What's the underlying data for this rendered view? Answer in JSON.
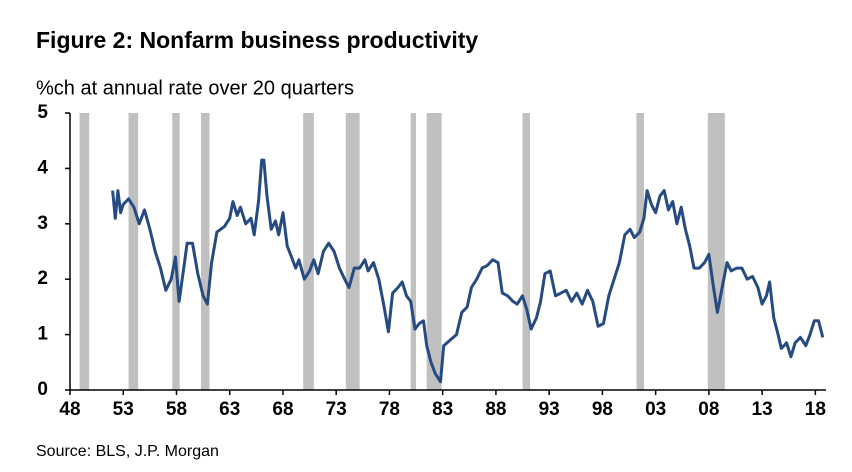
{
  "chart_data": {
    "type": "line",
    "title": "Figure 2: Nonfarm business productivity",
    "subtitle": "%ch at annual rate over 20 quarters",
    "source": "Source: BLS, J.P. Morgan",
    "xlim": [
      1948,
      2019
    ],
    "xticks": [
      {
        "value": 1948,
        "label": "48"
      },
      {
        "value": 1953,
        "label": "53"
      },
      {
        "value": 1958,
        "label": "58"
      },
      {
        "value": 1963,
        "label": "63"
      },
      {
        "value": 1968,
        "label": "68"
      },
      {
        "value": 1973,
        "label": "73"
      },
      {
        "value": 1978,
        "label": "78"
      },
      {
        "value": 1983,
        "label": "83"
      },
      {
        "value": 1988,
        "label": "88"
      },
      {
        "value": 1993,
        "label": "93"
      },
      {
        "value": 1998,
        "label": "98"
      },
      {
        "value": 2003,
        "label": "03"
      },
      {
        "value": 2008,
        "label": "08"
      },
      {
        "value": 2013,
        "label": "13"
      },
      {
        "value": 2018,
        "label": "18"
      }
    ],
    "ylim": [
      0,
      5
    ],
    "yticks": [
      0,
      1,
      2,
      3,
      4,
      5
    ],
    "recession_color": "#c0c0c0",
    "recessions": [
      [
        1948.9,
        1949.8
      ],
      [
        1953.5,
        1954.4
      ],
      [
        1957.6,
        1958.3
      ],
      [
        1960.3,
        1961.1
      ],
      [
        1969.9,
        1970.9
      ],
      [
        1973.9,
        1975.2
      ],
      [
        1980.0,
        1980.5
      ],
      [
        1981.5,
        1982.9
      ],
      [
        1990.5,
        1991.2
      ],
      [
        2001.2,
        2001.9
      ],
      [
        2007.9,
        2009.5
      ]
    ],
    "series": [
      {
        "name": "Nonfarm business productivity",
        "color": "#264b80",
        "x": [
          1952.0,
          1952.25,
          1952.5,
          1952.75,
          1953.0,
          1953.5,
          1954.0,
          1954.5,
          1955.0,
          1955.5,
          1956.0,
          1956.5,
          1957.0,
          1957.5,
          1957.9,
          1958.25,
          1958.75,
          1959.0,
          1959.5,
          1960.0,
          1960.5,
          1960.9,
          1961.3,
          1961.8,
          1962.5,
          1963.0,
          1963.3,
          1963.7,
          1964.0,
          1964.5,
          1965.0,
          1965.3,
          1965.7,
          1966.0,
          1966.2,
          1966.5,
          1966.9,
          1967.3,
          1967.6,
          1968.0,
          1968.4,
          1968.8,
          1969.2,
          1969.5,
          1970.0,
          1970.5,
          1970.9,
          1971.3,
          1971.8,
          1972.3,
          1972.8,
          1973.3,
          1973.8,
          1974.2,
          1974.7,
          1975.2,
          1975.7,
          1976.0,
          1976.5,
          1977.0,
          1977.5,
          1977.9,
          1978.3,
          1978.8,
          1979.2,
          1979.6,
          1980.0,
          1980.4,
          1980.8,
          1981.2,
          1981.5,
          1981.9,
          1982.3,
          1982.8,
          1983.1,
          1983.7,
          1984.3,
          1984.8,
          1985.3,
          1985.7,
          1986.2,
          1986.7,
          1987.2,
          1987.7,
          1988.2,
          1988.6,
          1989.1,
          1989.6,
          1990.0,
          1990.5,
          1990.9,
          1991.3,
          1991.8,
          1992.2,
          1992.6,
          1993.1,
          1993.6,
          1994.1,
          1994.6,
          1995.1,
          1995.6,
          1996.1,
          1996.6,
          1997.1,
          1997.6,
          1998.1,
          1998.6,
          1999.1,
          1999.6,
          2000.1,
          2000.6,
          2001.0,
          2001.5,
          2001.9,
          2002.2,
          2002.6,
          2003.0,
          2003.4,
          2003.8,
          2004.2,
          2004.6,
          2005.0,
          2005.4,
          2005.8,
          2006.2,
          2006.6,
          2007.1,
          2007.6,
          2008.0,
          2008.4,
          2008.8,
          2009.3,
          2009.7,
          2010.1,
          2010.6,
          2011.1,
          2011.6,
          2012.1,
          2012.6,
          2013.0,
          2013.4,
          2013.7,
          2014.1,
          2014.5,
          2014.8,
          2015.3,
          2015.7,
          2016.1,
          2016.6,
          2017.1,
          2017.5,
          2017.9,
          2018.3,
          2018.7
        ],
        "values": [
          3.6,
          3.1,
          3.6,
          3.2,
          3.35,
          3.45,
          3.3,
          3.0,
          3.25,
          2.9,
          2.5,
          2.2,
          1.8,
          2.0,
          2.4,
          1.6,
          2.3,
          2.65,
          2.65,
          2.1,
          1.7,
          1.55,
          2.3,
          2.85,
          2.95,
          3.1,
          3.4,
          3.15,
          3.3,
          3.0,
          3.1,
          2.8,
          3.4,
          4.15,
          4.15,
          3.5,
          2.9,
          3.05,
          2.8,
          3.2,
          2.6,
          2.4,
          2.2,
          2.35,
          2.0,
          2.15,
          2.35,
          2.1,
          2.5,
          2.65,
          2.5,
          2.2,
          2.0,
          1.85,
          2.2,
          2.2,
          2.35,
          2.15,
          2.3,
          2.0,
          1.5,
          1.05,
          1.75,
          1.85,
          1.95,
          1.7,
          1.6,
          1.1,
          1.2,
          1.25,
          0.8,
          0.5,
          0.3,
          0.15,
          0.8,
          0.9,
          1.0,
          1.4,
          1.5,
          1.85,
          2.0,
          2.2,
          2.25,
          2.35,
          2.3,
          1.75,
          1.7,
          1.6,
          1.55,
          1.7,
          1.45,
          1.1,
          1.3,
          1.6,
          2.1,
          2.15,
          1.7,
          1.75,
          1.8,
          1.6,
          1.75,
          1.55,
          1.8,
          1.6,
          1.15,
          1.2,
          1.7,
          2.0,
          2.3,
          2.8,
          2.9,
          2.75,
          2.85,
          3.1,
          3.6,
          3.35,
          3.2,
          3.5,
          3.6,
          3.25,
          3.4,
          3.0,
          3.3,
          2.9,
          2.6,
          2.2,
          2.2,
          2.3,
          2.45,
          1.9,
          1.4,
          1.9,
          2.3,
          2.15,
          2.2,
          2.2,
          2.0,
          2.05,
          1.85,
          1.55,
          1.7,
          1.95,
          1.3,
          1.0,
          0.75,
          0.85,
          0.6,
          0.85,
          0.95,
          0.8,
          1.0,
          1.25,
          1.25,
          0.95
        ]
      }
    ]
  }
}
